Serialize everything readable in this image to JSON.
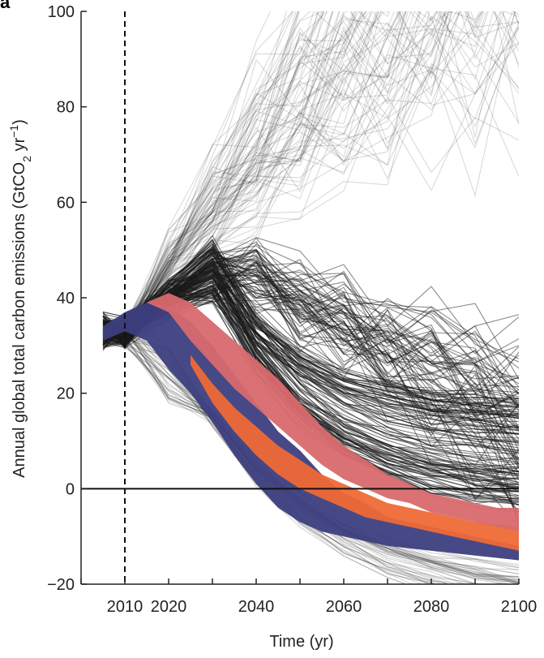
{
  "panel_label": "a",
  "chart_data": {
    "type": "line",
    "title": "",
    "xlabel": "Time (yr)",
    "ylabel_parts": [
      "Annual global total carbon emissions (GtCO",
      "2",
      " yr",
      "−1",
      ")"
    ],
    "xlim": [
      2000,
      2100
    ],
    "ylim": [
      -20,
      100
    ],
    "x_ticks": [
      2010,
      2020,
      2040,
      2060,
      2080,
      2100
    ],
    "y_ticks": [
      -20,
      0,
      20,
      40,
      60,
      80,
      100
    ],
    "grid": false,
    "reference_lines": [
      {
        "axis": "x",
        "value": 2010,
        "style": "dashed"
      },
      {
        "axis": "y",
        "value": 0,
        "style": "solid"
      }
    ],
    "colors": {
      "scenario_lines": "#1a1a1a",
      "bands": [
        "#3d3f7f",
        "#ef6a36",
        "#d86a6e"
      ]
    },
    "bands": [
      {
        "color": "#3d3f7f",
        "x": [
          2005,
          2010,
          2015,
          2020,
          2025,
          2030,
          2035,
          2040,
          2045,
          2050,
          2055,
          2060,
          2065,
          2070,
          2075,
          2080,
          2085,
          2090,
          2095,
          2100
        ],
        "upper": [
          34,
          37,
          39,
          38,
          35,
          30,
          24,
          18,
          12,
          8,
          3,
          -1,
          -3,
          -6,
          -7,
          -8,
          -9,
          -10,
          -11,
          -12
        ],
        "lower": [
          31,
          33,
          31,
          25,
          20,
          14,
          7,
          1,
          -4,
          -7,
          -9,
          -10,
          -11,
          -12,
          -12.5,
          -13,
          -13.5,
          -14,
          -14.5,
          -15
        ]
      },
      {
        "color": "#ef6a36",
        "x": [
          2025,
          2030,
          2035,
          2040,
          2045,
          2050,
          2055,
          2060,
          2065,
          2070,
          2075,
          2080,
          2085,
          2090,
          2095,
          2100
        ],
        "upper": [
          28,
          22,
          17,
          13,
          9,
          6,
          3,
          1,
          -1,
          -3,
          -4,
          -5,
          -6,
          -7,
          -7.5,
          -8
        ],
        "lower": [
          26,
          18,
          12,
          7,
          3,
          0,
          -2,
          -4,
          -6,
          -7,
          -8,
          -9,
          -10,
          -11,
          -12,
          -13
        ]
      },
      {
        "color": "#d86a6e",
        "x": [
          2015,
          2020,
          2025,
          2030,
          2035,
          2040,
          2045,
          2050,
          2055,
          2060,
          2065,
          2070,
          2075,
          2080,
          2085,
          2090,
          2095,
          2100
        ],
        "upper": [
          39,
          41,
          39,
          35,
          31,
          27,
          23,
          18,
          13,
          9,
          6,
          3,
          1,
          -1,
          -2,
          -3,
          -4,
          -4
        ],
        "lower": [
          39,
          37,
          31,
          26,
          21,
          17,
          13,
          9,
          5,
          2,
          0,
          -2,
          -3,
          -5,
          -6,
          -7,
          -8,
          -9
        ]
      }
    ]
  }
}
